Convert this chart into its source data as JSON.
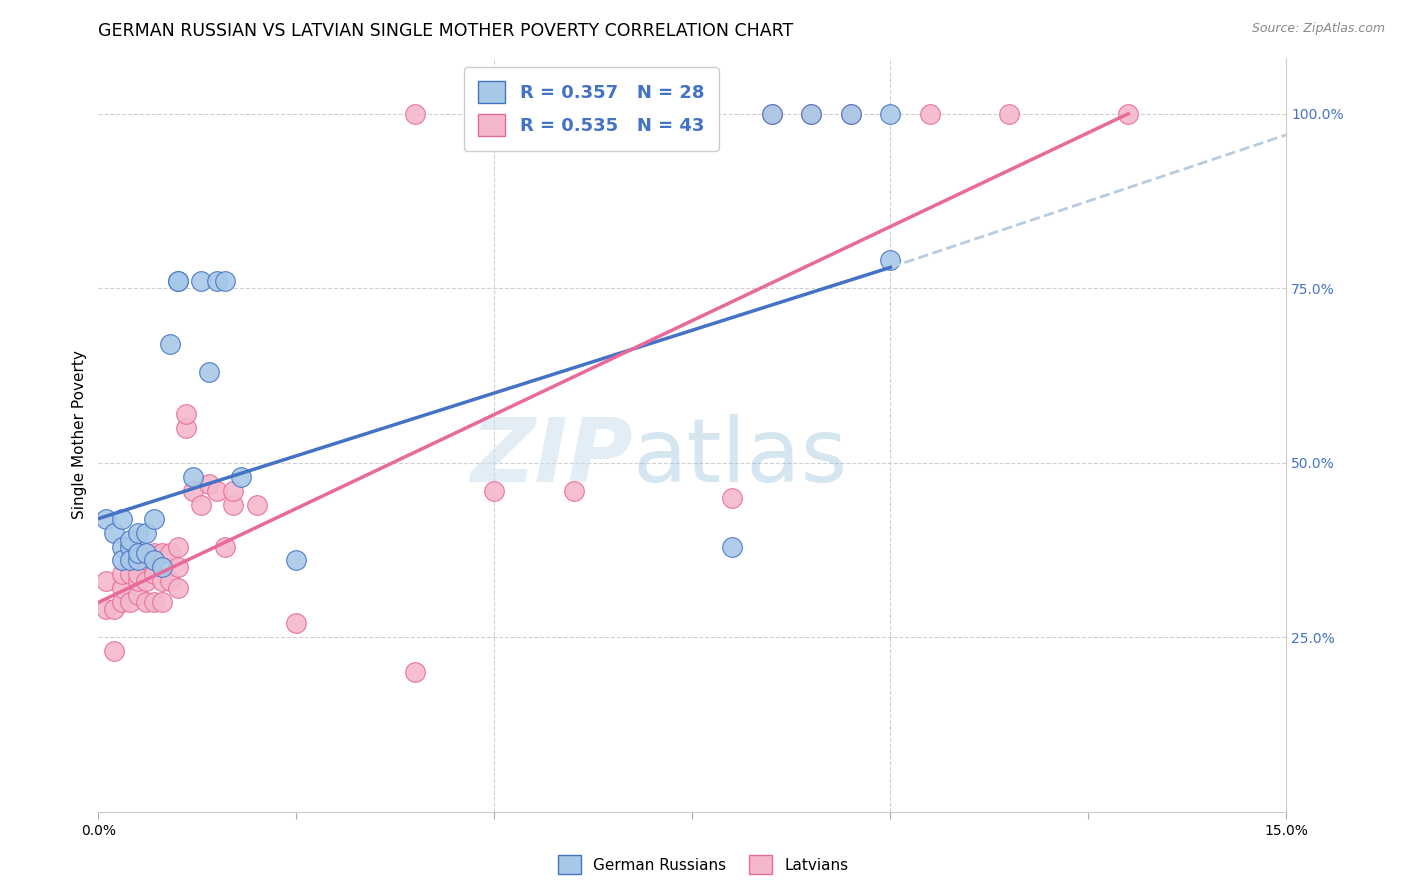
{
  "title": "GERMAN RUSSIAN VS LATVIAN SINGLE MOTHER POVERTY CORRELATION CHART",
  "source": "Source: ZipAtlas.com",
  "xlabel": "",
  "ylabel": "Single Mother Poverty",
  "xlim": [
    0.0,
    0.15
  ],
  "ylim": [
    0.0,
    1.08
  ],
  "ytick_right_vals": [
    1.0,
    0.75,
    0.5,
    0.25
  ],
  "legend_r1": "R = 0.357   N = 28",
  "legend_r2": "R = 0.535   N = 43",
  "legend_label1": "German Russians",
  "legend_label2": "Latvians",
  "color_blue": "#a8c8e8",
  "color_pink": "#f4b8cc",
  "color_blue_line": "#4472c4",
  "color_pink_line": "#e8699a",
  "color_dashed": "#b8cce0",
  "german_russian_x": [
    0.001,
    0.002,
    0.003,
    0.003,
    0.003,
    0.004,
    0.004,
    0.004,
    0.005,
    0.005,
    0.005,
    0.006,
    0.006,
    0.007,
    0.007,
    0.008,
    0.009,
    0.01,
    0.01,
    0.012,
    0.013,
    0.014,
    0.015,
    0.016,
    0.018,
    0.025,
    0.08,
    0.1
  ],
  "german_russian_y": [
    0.42,
    0.4,
    0.38,
    0.36,
    0.42,
    0.38,
    0.36,
    0.39,
    0.36,
    0.4,
    0.37,
    0.37,
    0.4,
    0.36,
    0.42,
    0.35,
    0.67,
    0.76,
    0.76,
    0.48,
    0.76,
    0.63,
    0.76,
    0.76,
    0.48,
    0.36,
    0.38,
    0.79
  ],
  "latvian_x": [
    0.001,
    0.001,
    0.002,
    0.002,
    0.003,
    0.003,
    0.003,
    0.004,
    0.004,
    0.005,
    0.005,
    0.005,
    0.005,
    0.006,
    0.006,
    0.006,
    0.007,
    0.007,
    0.007,
    0.008,
    0.008,
    0.008,
    0.009,
    0.009,
    0.01,
    0.01,
    0.01,
    0.011,
    0.011,
    0.012,
    0.013,
    0.014,
    0.015,
    0.016,
    0.017,
    0.017,
    0.02,
    0.025,
    0.04,
    0.05,
    0.06,
    0.08,
    0.13
  ],
  "latvian_y": [
    0.33,
    0.29,
    0.29,
    0.23,
    0.3,
    0.32,
    0.34,
    0.3,
    0.34,
    0.31,
    0.33,
    0.34,
    0.37,
    0.3,
    0.33,
    0.36,
    0.3,
    0.34,
    0.37,
    0.3,
    0.33,
    0.37,
    0.33,
    0.37,
    0.32,
    0.35,
    0.38,
    0.55,
    0.57,
    0.46,
    0.44,
    0.47,
    0.46,
    0.38,
    0.44,
    0.46,
    0.44,
    0.27,
    0.2,
    0.46,
    0.46,
    0.45,
    1.0
  ],
  "blue_line_x": [
    0.0,
    0.1
  ],
  "blue_line_y": [
    0.42,
    0.78
  ],
  "pink_line_x": [
    0.0,
    0.13
  ],
  "pink_line_y": [
    0.3,
    1.0
  ],
  "dashed_line_x": [
    0.1,
    0.15
  ],
  "dashed_line_y": [
    0.78,
    0.97
  ],
  "dot_rows_pink_x": [
    0.04,
    0.055,
    0.07,
    0.075,
    0.08,
    0.09,
    0.095,
    0.1,
    0.115
  ],
  "dot_rows_pink_y": [
    1.0,
    1.0,
    1.0,
    1.0,
    1.0,
    1.0,
    1.0,
    1.0,
    1.0
  ]
}
